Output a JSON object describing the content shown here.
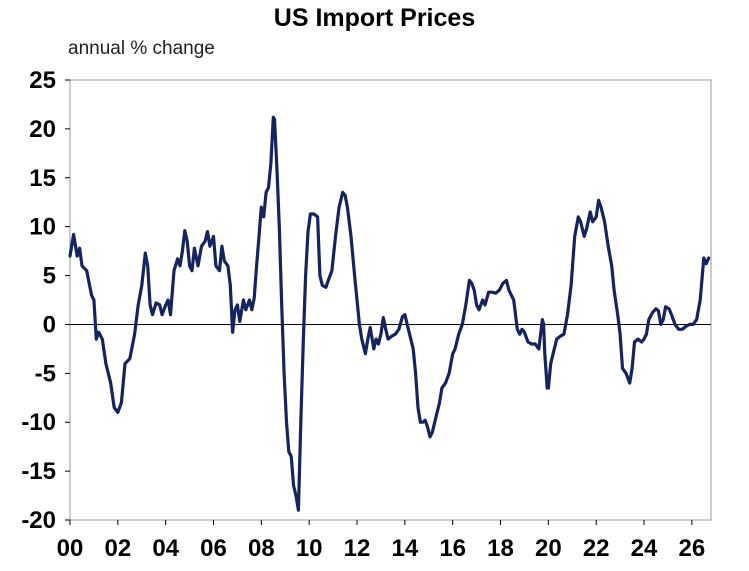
{
  "chart_data": {
    "type": "line",
    "title": "US Import Prices",
    "ylabel": "annual % change",
    "xlabel": "",
    "xlim": [
      2000,
      2026.8
    ],
    "ylim": [
      -20,
      25
    ],
    "yticks": [
      "25",
      "20",
      "15",
      "10",
      "5",
      "0",
      "-5",
      "-10",
      "-15",
      "-20"
    ],
    "ytick_values": [
      25,
      20,
      15,
      10,
      5,
      0,
      -5,
      -10,
      -15,
      -20
    ],
    "xticks": [
      "00",
      "02",
      "04",
      "06",
      "08",
      "10",
      "12",
      "14",
      "16",
      "18",
      "20",
      "22",
      "24",
      "26"
    ],
    "xtick_values": [
      2000,
      2002,
      2004,
      2006,
      2008,
      2010,
      2012,
      2014,
      2016,
      2018,
      2020,
      2022,
      2024,
      2026
    ],
    "grid": false,
    "zero_line": true,
    "line_color": "#14245e",
    "series": [
      {
        "values": [
          [
            2000.0,
            7.0
          ],
          [
            2000.15,
            9.2
          ],
          [
            2000.3,
            7.0
          ],
          [
            2000.4,
            7.8
          ],
          [
            2000.5,
            6.0
          ],
          [
            2000.7,
            5.5
          ],
          [
            2000.9,
            3.0
          ],
          [
            2001.0,
            2.5
          ],
          [
            2001.1,
            -1.5
          ],
          [
            2001.2,
            -0.8
          ],
          [
            2001.35,
            -1.5
          ],
          [
            2001.5,
            -4.0
          ],
          [
            2001.7,
            -6.0
          ],
          [
            2001.85,
            -8.5
          ],
          [
            2002.0,
            -9.0
          ],
          [
            2002.15,
            -8.0
          ],
          [
            2002.3,
            -4.0
          ],
          [
            2002.5,
            -3.5
          ],
          [
            2002.7,
            -1.0
          ],
          [
            2002.85,
            2.0
          ],
          [
            2003.0,
            4.0
          ],
          [
            2003.15,
            7.3
          ],
          [
            2003.25,
            6.0
          ],
          [
            2003.35,
            2.0
          ],
          [
            2003.45,
            1.0
          ],
          [
            2003.6,
            2.2
          ],
          [
            2003.75,
            2.0
          ],
          [
            2003.85,
            1.0
          ],
          [
            2004.0,
            2.0
          ],
          [
            2004.1,
            2.5
          ],
          [
            2004.2,
            1.0
          ],
          [
            2004.35,
            5.5
          ],
          [
            2004.5,
            6.7
          ],
          [
            2004.6,
            6.0
          ],
          [
            2004.7,
            7.5
          ],
          [
            2004.8,
            9.6
          ],
          [
            2004.9,
            8.5
          ],
          [
            2005.0,
            6.0
          ],
          [
            2005.1,
            5.5
          ],
          [
            2005.2,
            7.8
          ],
          [
            2005.35,
            6.0
          ],
          [
            2005.5,
            8.0
          ],
          [
            2005.65,
            8.5
          ],
          [
            2005.75,
            9.5
          ],
          [
            2005.85,
            8.0
          ],
          [
            2006.0,
            9.0
          ],
          [
            2006.1,
            6.0
          ],
          [
            2006.25,
            5.5
          ],
          [
            2006.35,
            8.0
          ],
          [
            2006.45,
            6.5
          ],
          [
            2006.6,
            6.0
          ],
          [
            2006.7,
            4.0
          ],
          [
            2006.8,
            -0.8
          ],
          [
            2006.9,
            1.5
          ],
          [
            2007.0,
            2.0
          ],
          [
            2007.1,
            0.3
          ],
          [
            2007.25,
            2.5
          ],
          [
            2007.35,
            1.5
          ],
          [
            2007.5,
            2.5
          ],
          [
            2007.6,
            1.5
          ],
          [
            2007.7,
            2.7
          ],
          [
            2007.8,
            6.0
          ],
          [
            2007.9,
            9.0
          ],
          [
            2008.0,
            12.0
          ],
          [
            2008.1,
            11.0
          ],
          [
            2008.2,
            13.5
          ],
          [
            2008.3,
            14.0
          ],
          [
            2008.4,
            16.5
          ],
          [
            2008.5,
            21.2
          ],
          [
            2008.55,
            21.0
          ],
          [
            2008.65,
            16.0
          ],
          [
            2008.75,
            10.0
          ],
          [
            2008.85,
            2.0
          ],
          [
            2008.95,
            -5.0
          ],
          [
            2009.05,
            -10.0
          ],
          [
            2009.15,
            -13.0
          ],
          [
            2009.25,
            -13.5
          ],
          [
            2009.35,
            -16.5
          ],
          [
            2009.45,
            -17.5
          ],
          [
            2009.55,
            -19.0
          ],
          [
            2009.65,
            -10.0
          ],
          [
            2009.75,
            -2.0
          ],
          [
            2009.85,
            5.0
          ],
          [
            2009.95,
            9.5
          ],
          [
            2010.05,
            11.3
          ],
          [
            2010.2,
            11.3
          ],
          [
            2010.35,
            11.0
          ],
          [
            2010.45,
            5.0
          ],
          [
            2010.55,
            4.0
          ],
          [
            2010.7,
            3.8
          ],
          [
            2010.8,
            4.5
          ],
          [
            2010.95,
            5.5
          ],
          [
            2011.1,
            9.0
          ],
          [
            2011.25,
            12.0
          ],
          [
            2011.4,
            13.5
          ],
          [
            2011.5,
            13.2
          ],
          [
            2011.6,
            12.0
          ],
          [
            2011.75,
            9.0
          ],
          [
            2011.9,
            5.0
          ],
          [
            2012.0,
            2.5
          ],
          [
            2012.1,
            0.0
          ],
          [
            2012.2,
            -1.5
          ],
          [
            2012.35,
            -3.0
          ],
          [
            2012.45,
            -1.5
          ],
          [
            2012.55,
            -0.3
          ],
          [
            2012.7,
            -2.5
          ],
          [
            2012.8,
            -1.5
          ],
          [
            2012.9,
            -2.0
          ],
          [
            2013.0,
            -1.0
          ],
          [
            2013.1,
            0.7
          ],
          [
            2013.2,
            -0.5
          ],
          [
            2013.3,
            -1.5
          ],
          [
            2013.45,
            -1.2
          ],
          [
            2013.6,
            -1.0
          ],
          [
            2013.75,
            -0.5
          ],
          [
            2013.9,
            0.8
          ],
          [
            2014.0,
            1.0
          ],
          [
            2014.1,
            0.0
          ],
          [
            2014.2,
            -1.0
          ],
          [
            2014.35,
            -2.5
          ],
          [
            2014.45,
            -5.0
          ],
          [
            2014.55,
            -8.5
          ],
          [
            2014.65,
            -10.0
          ],
          [
            2014.75,
            -10.0
          ],
          [
            2014.85,
            -9.8
          ],
          [
            2014.95,
            -10.5
          ],
          [
            2015.05,
            -11.5
          ],
          [
            2015.15,
            -11.0
          ],
          [
            2015.3,
            -9.5
          ],
          [
            2015.45,
            -8.0
          ],
          [
            2015.55,
            -6.5
          ],
          [
            2015.7,
            -6.0
          ],
          [
            2015.85,
            -5.0
          ],
          [
            2016.0,
            -3.0
          ],
          [
            2016.1,
            -2.5
          ],
          [
            2016.25,
            -1.0
          ],
          [
            2016.4,
            0.0
          ],
          [
            2016.55,
            2.0
          ],
          [
            2016.7,
            4.5
          ],
          [
            2016.8,
            4.2
          ],
          [
            2016.9,
            3.5
          ],
          [
            2017.0,
            2.0
          ],
          [
            2017.1,
            1.5
          ],
          [
            2017.25,
            2.5
          ],
          [
            2017.35,
            2.0
          ],
          [
            2017.5,
            3.3
          ],
          [
            2017.65,
            3.3
          ],
          [
            2017.8,
            3.2
          ],
          [
            2017.95,
            3.5
          ],
          [
            2018.1,
            4.2
          ],
          [
            2018.25,
            4.5
          ],
          [
            2018.35,
            3.5
          ],
          [
            2018.45,
            3.0
          ],
          [
            2018.55,
            2.5
          ],
          [
            2018.7,
            -0.5
          ],
          [
            2018.8,
            -1.0
          ],
          [
            2018.9,
            -0.5
          ],
          [
            2019.0,
            -0.8
          ],
          [
            2019.15,
            -1.8
          ],
          [
            2019.3,
            -2.0
          ],
          [
            2019.45,
            -2.0
          ],
          [
            2019.6,
            -2.5
          ],
          [
            2019.75,
            0.5
          ],
          [
            2019.8,
            0.0
          ],
          [
            2019.85,
            -3.0
          ],
          [
            2019.95,
            -6.5
          ],
          [
            2020.0,
            -6.5
          ],
          [
            2020.1,
            -4.0
          ],
          [
            2020.2,
            -3.0
          ],
          [
            2020.35,
            -1.5
          ],
          [
            2020.5,
            -1.2
          ],
          [
            2020.65,
            -1.0
          ],
          [
            2020.8,
            1.0
          ],
          [
            2020.95,
            4.0
          ],
          [
            2021.1,
            9.0
          ],
          [
            2021.25,
            11.0
          ],
          [
            2021.35,
            10.5
          ],
          [
            2021.5,
            9.0
          ],
          [
            2021.6,
            9.8
          ],
          [
            2021.75,
            11.5
          ],
          [
            2021.85,
            10.5
          ],
          [
            2022.0,
            11.0
          ],
          [
            2022.1,
            12.7
          ],
          [
            2022.2,
            12.0
          ],
          [
            2022.35,
            10.5
          ],
          [
            2022.5,
            8.0
          ],
          [
            2022.65,
            6.0
          ],
          [
            2022.75,
            3.5
          ],
          [
            2022.9,
            1.0
          ],
          [
            2023.0,
            -1.0
          ],
          [
            2023.1,
            -4.5
          ],
          [
            2023.25,
            -5.0
          ],
          [
            2023.4,
            -6.0
          ],
          [
            2023.5,
            -4.5
          ],
          [
            2023.6,
            -1.8
          ],
          [
            2023.75,
            -1.5
          ],
          [
            2023.9,
            -1.8
          ],
          [
            2024.0,
            -1.5
          ],
          [
            2024.1,
            -1.0
          ],
          [
            2024.2,
            0.5
          ],
          [
            2024.35,
            1.2
          ],
          [
            2024.5,
            1.6
          ],
          [
            2024.6,
            1.4
          ],
          [
            2024.7,
            0.0
          ],
          [
            2024.8,
            0.5
          ],
          [
            2024.9,
            1.8
          ],
          [
            2025.05,
            1.6
          ],
          [
            2025.15,
            1.0
          ],
          [
            2025.3,
            0.0
          ],
          [
            2025.45,
            -0.5
          ],
          [
            2025.6,
            -0.5
          ],
          [
            2025.75,
            -0.2
          ],
          [
            2025.9,
            0.0
          ],
          [
            2026.05,
            0.0
          ],
          [
            2026.2,
            0.5
          ],
          [
            2026.35,
            2.5
          ],
          [
            2026.5,
            6.8
          ],
          [
            2026.6,
            6.2
          ],
          [
            2026.7,
            6.8
          ]
        ]
      }
    ]
  }
}
